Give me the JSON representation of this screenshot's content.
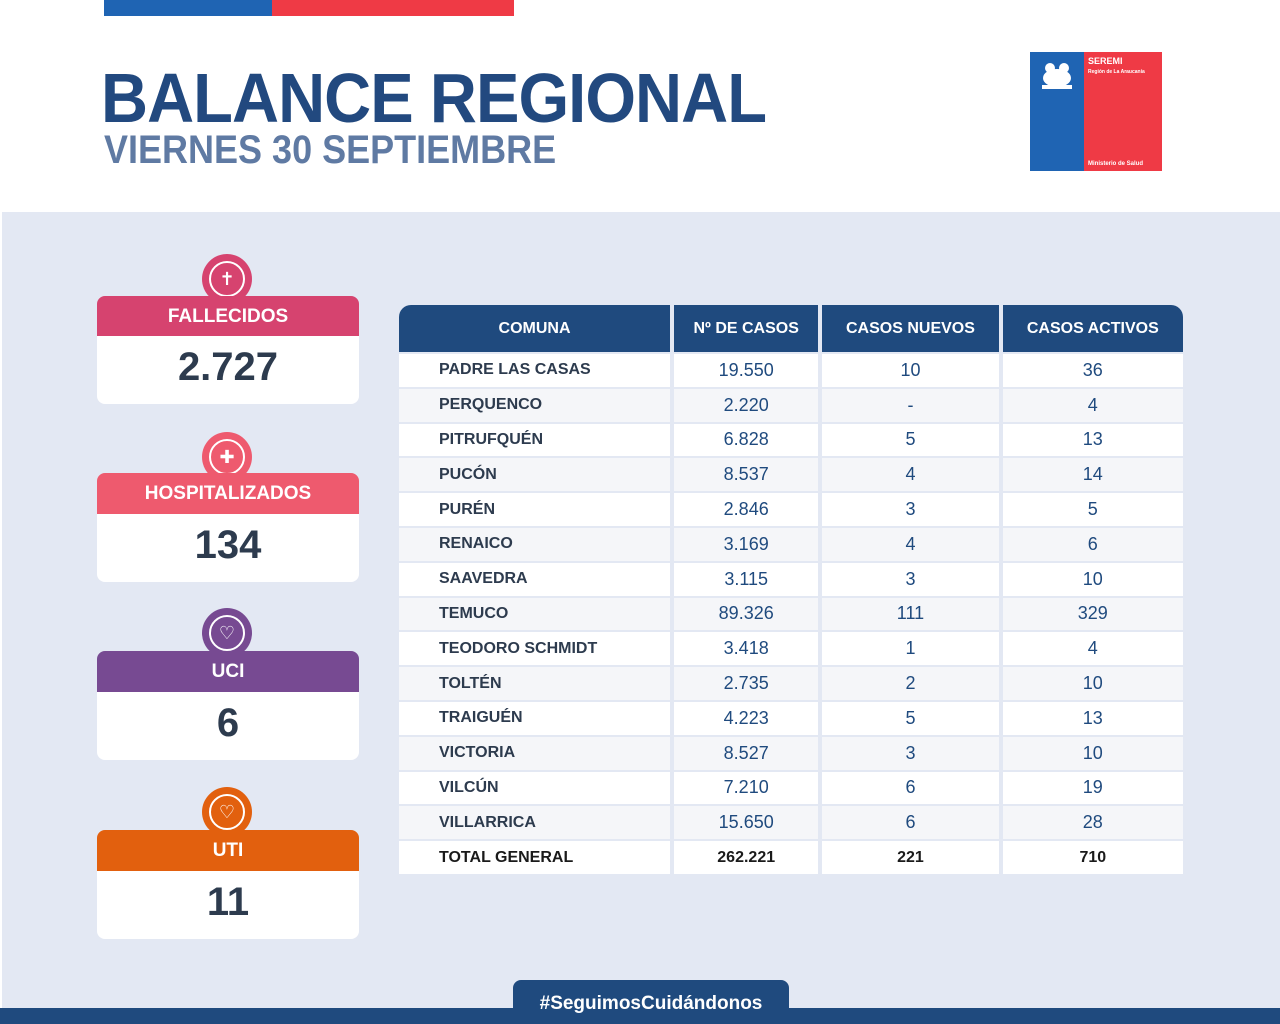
{
  "header": {
    "title": "BALANCE REGIONAL",
    "subtitle": "VIERNES 30 SEPTIEMBRE"
  },
  "logo": {
    "seremi": "SEREMI",
    "region": "Región de La Araucanía",
    "ministry": "Ministerio de Salud"
  },
  "colors": {
    "navy": "#1f4a7e",
    "blue": "#1f64b3",
    "red": "#ef3a45",
    "fallecidos": "#d6436f",
    "hospitalizados": "#ee5a6e",
    "uci": "#774a92",
    "uti": "#e2600e"
  },
  "stats": [
    {
      "label": "FALLECIDOS",
      "value": "2.727",
      "icon": "tombstone-icon"
    },
    {
      "label": "HOSPITALIZADOS",
      "value": "134",
      "icon": "medical-cross-icon"
    },
    {
      "label": "UCI",
      "value": "6",
      "icon": "heart-monitor-icon"
    },
    {
      "label": "UTI",
      "value": "11",
      "icon": "heart-monitor-icon"
    }
  ],
  "table": {
    "headers": [
      "COMUNA",
      "Nº DE CASOS",
      "CASOS NUEVOS",
      "CASOS ACTIVOS"
    ],
    "rows": [
      [
        "PADRE LAS CASAS",
        "19.550",
        "10",
        "36"
      ],
      [
        "PERQUENCO",
        "2.220",
        "-",
        "4"
      ],
      [
        "PITRUFQUÉN",
        "6.828",
        "5",
        "13"
      ],
      [
        "PUCÓN",
        "8.537",
        "4",
        "14"
      ],
      [
        "PURÉN",
        "2.846",
        "3",
        "5"
      ],
      [
        "RENAICO",
        "3.169",
        "4",
        "6"
      ],
      [
        "SAAVEDRA",
        "3.115",
        "3",
        "10"
      ],
      [
        "TEMUCO",
        "89.326",
        "111",
        "329"
      ],
      [
        "TEODORO SCHMIDT",
        "3.418",
        "1",
        "4"
      ],
      [
        "TOLTÉN",
        "2.735",
        "2",
        "10"
      ],
      [
        "TRAIGUÉN",
        "4.223",
        "5",
        "13"
      ],
      [
        "VICTORIA",
        "8.527",
        "3",
        "10"
      ],
      [
        "VILCÚN",
        "7.210",
        "6",
        "19"
      ],
      [
        "VILLARRICA",
        "15.650",
        "6",
        "28"
      ]
    ],
    "total": [
      "TOTAL GENERAL",
      "262.221",
      "221",
      "710"
    ]
  },
  "footer": {
    "hashtag": "#SeguimosCuidándonos"
  }
}
